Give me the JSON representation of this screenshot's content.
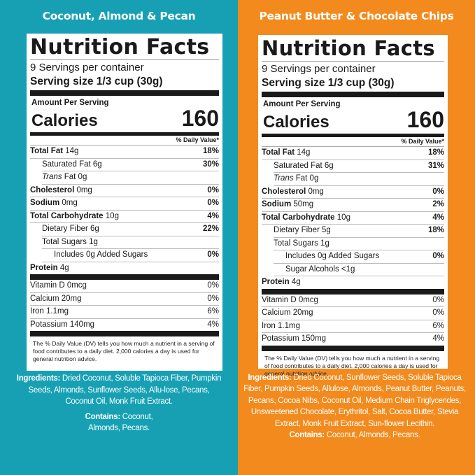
{
  "panels": [
    {
      "flavor": "Coconut, Almond & Pecan",
      "background": "#17a0b4",
      "label": {
        "title": "Nutrition Facts",
        "servings_per_container": "9 Servings per container",
        "serving_size": "Serving size 1/3 cup (30g)",
        "amount_per_serving": "Amount Per Serving",
        "calories_label": "Calories",
        "calories_value": "160",
        "dv_header": "% Daily Value*",
        "nutrients": [
          {
            "bold": "Total Fat",
            "amount": " 14g",
            "dv": "18%"
          },
          {
            "bold": "",
            "amount": "Saturated Fat 6g",
            "dv": "30%"
          },
          {
            "italic": "Trans",
            "amount": " Fat 0g",
            "dv": ""
          },
          {
            "bold": "Cholesterol",
            "amount": " 0mg",
            "dv": "0%"
          },
          {
            "bold": "Sodium",
            "amount": " 0mg",
            "dv": "0%"
          },
          {
            "bold": "Total Carbohydrate",
            "amount": " 10g",
            "dv": "4%"
          },
          {
            "bold": "",
            "amount": "Dietary Fiber 6g",
            "dv": "22%"
          },
          {
            "bold": "",
            "amount": "Total Sugars 1g",
            "dv": ""
          },
          {
            "bold": "",
            "amount": "Includes 0g Added Sugars",
            "dv": "0%"
          },
          {
            "bold": "Protein",
            "amount": " 4g",
            "dv": ""
          }
        ],
        "vitamins": [
          {
            "name": "Vitamin D 0mcg",
            "dv": "0%"
          },
          {
            "name": "Calcium 20mg",
            "dv": "0%"
          },
          {
            "name": "Iron 1.1mg",
            "dv": "6%"
          },
          {
            "name": "Potassium 140mg",
            "dv": "4%"
          }
        ],
        "footnote": "The % Daily Value (DV) tells you how much a nutrient in a serving of food contributes to a daily diet. 2,000 calories a day is used for general nutrition advice."
      },
      "ingredients_label": "Ingredients:",
      "ingredients_text": " Dried Coconut, Soluble Tapioca Fiber, Pumpkin Seeds, Almonds, Sunflower Seeds, Allu-lose, Pecans, Coconut Oil, Monk Fruit Extract.",
      "contains_label": "Contains:",
      "contains_text": "  Coconut, Almonds, Pecans."
    },
    {
      "flavor": "Peanut Butter & Chocolate Chips",
      "background": "#f28a1d",
      "label": {
        "title": "Nutrition Facts",
        "servings_per_container": "9 Servings per container",
        "serving_size": "Serving size 1/3 cup (30g)",
        "amount_per_serving": "Amount Per Serving",
        "calories_label": "Calories",
        "calories_value": "160",
        "dv_header": "% Daily Value*",
        "nutrients": [
          {
            "bold": "Total Fat",
            "amount": " 14g",
            "dv": "18%"
          },
          {
            "bold": "",
            "amount": "Saturated Fat 6g",
            "dv": "31%"
          },
          {
            "italic": "Trans",
            "amount": " Fat 0g",
            "dv": ""
          },
          {
            "bold": "Cholesterol",
            "amount": " 0mg",
            "dv": "0%"
          },
          {
            "bold": "Sodium",
            "amount": " 50mg",
            "dv": "2%"
          },
          {
            "bold": "Total Carbohydrate",
            "amount": " 10g",
            "dv": "4%"
          },
          {
            "bold": "",
            "amount": "Dietary Fiber 5g",
            "dv": "18%"
          },
          {
            "bold": "",
            "amount": "Total Sugars 1g",
            "dv": ""
          },
          {
            "bold": "",
            "amount": "Includes 0g Added Sugars",
            "dv": "0%"
          },
          {
            "bold": "",
            "amount": "Sugar Alcohols <1g",
            "dv": ""
          },
          {
            "bold": "Protein",
            "amount": " 4g",
            "dv": ""
          }
        ],
        "vitamins": [
          {
            "name": "Vitamin D 0mcg",
            "dv": "0%"
          },
          {
            "name": "Calcium 20mg",
            "dv": "0%"
          },
          {
            "name": "Iron 1.1mg",
            "dv": "6%"
          },
          {
            "name": "Potassium 150mg",
            "dv": "4%"
          }
        ],
        "footnote": "The % Daily Value (DV) tells you how much a nutrient in a serving of food contributes to a daily diet. 2,000 calories a day is used for general nutrition advice."
      },
      "ingredients_label": "Ingredients:",
      "ingredients_text": " Dried Coconut, Sunflower Seeds, Soluble Tapioca Fiber, Pumpkin Seeds, Allulose, Almonds, Peanut Butter, Peanuts, Pecans, Cocoa Nibs, Coconut Oil, Medium Chain Triglycerides, Unsweetened Chocolate, Erythritol, Salt, Cocoa Butter, Stevia Extract, Monk Fruit Extract, Sun-flower Lecithin.",
      "contains_label": "Contains:",
      "contains_text": "  Coconut, Almonds, Pecans."
    }
  ]
}
